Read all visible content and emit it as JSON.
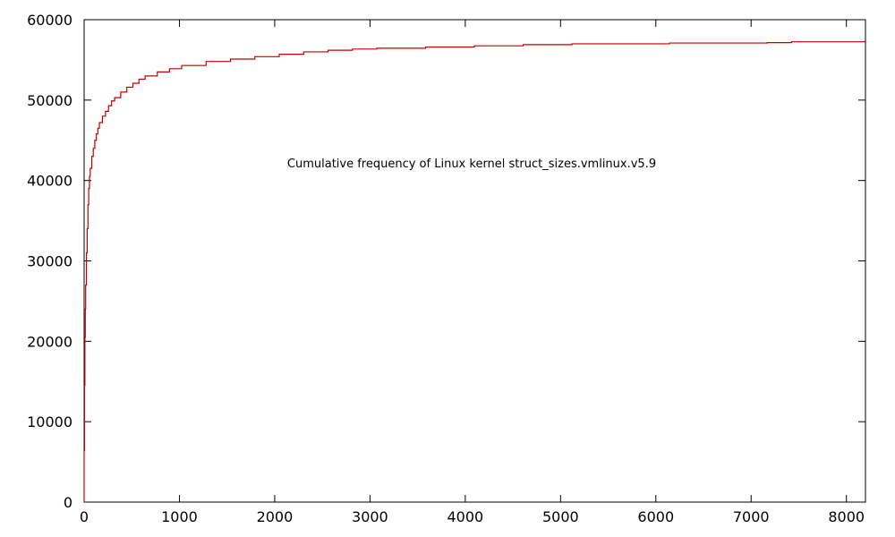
{
  "chart_data": {
    "type": "line",
    "title": "",
    "xlabel": "",
    "ylabel": "",
    "xlim": [
      0,
      8200
    ],
    "ylim": [
      0,
      60000
    ],
    "x_ticks": [
      0,
      1000,
      2000,
      3000,
      4000,
      5000,
      6000,
      7000,
      8000
    ],
    "y_ticks": [
      0,
      10000,
      20000,
      30000,
      40000,
      50000,
      60000
    ],
    "grid": false,
    "legend": "none",
    "series": [
      {
        "name": "Cumulative frequency of Linux kernel struct_sizes.vmlinux.v5.9",
        "color": "#c00000",
        "x": [
          0,
          4,
          8,
          12,
          16,
          24,
          32,
          40,
          48,
          56,
          64,
          80,
          96,
          112,
          128,
          144,
          160,
          192,
          224,
          256,
          288,
          320,
          384,
          448,
          512,
          576,
          640,
          768,
          896,
          1024,
          1280,
          1536,
          1792,
          2048,
          2304,
          2560,
          2816,
          3072,
          3584,
          4096,
          4608,
          5120,
          6144,
          7168,
          7424,
          8192
        ],
        "y": [
          6400,
          14500,
          20500,
          24000,
          27000,
          31000,
          34000,
          37000,
          39000,
          40500,
          41500,
          43000,
          44000,
          45000,
          45800,
          46500,
          47200,
          48000,
          48600,
          49300,
          49900,
          50300,
          51000,
          51600,
          52100,
          52600,
          53000,
          53500,
          53900,
          54300,
          54800,
          55100,
          55400,
          55700,
          56000,
          56200,
          56350,
          56450,
          56600,
          56750,
          56900,
          57000,
          57100,
          57150,
          57250,
          57300
        ]
      }
    ]
  }
}
